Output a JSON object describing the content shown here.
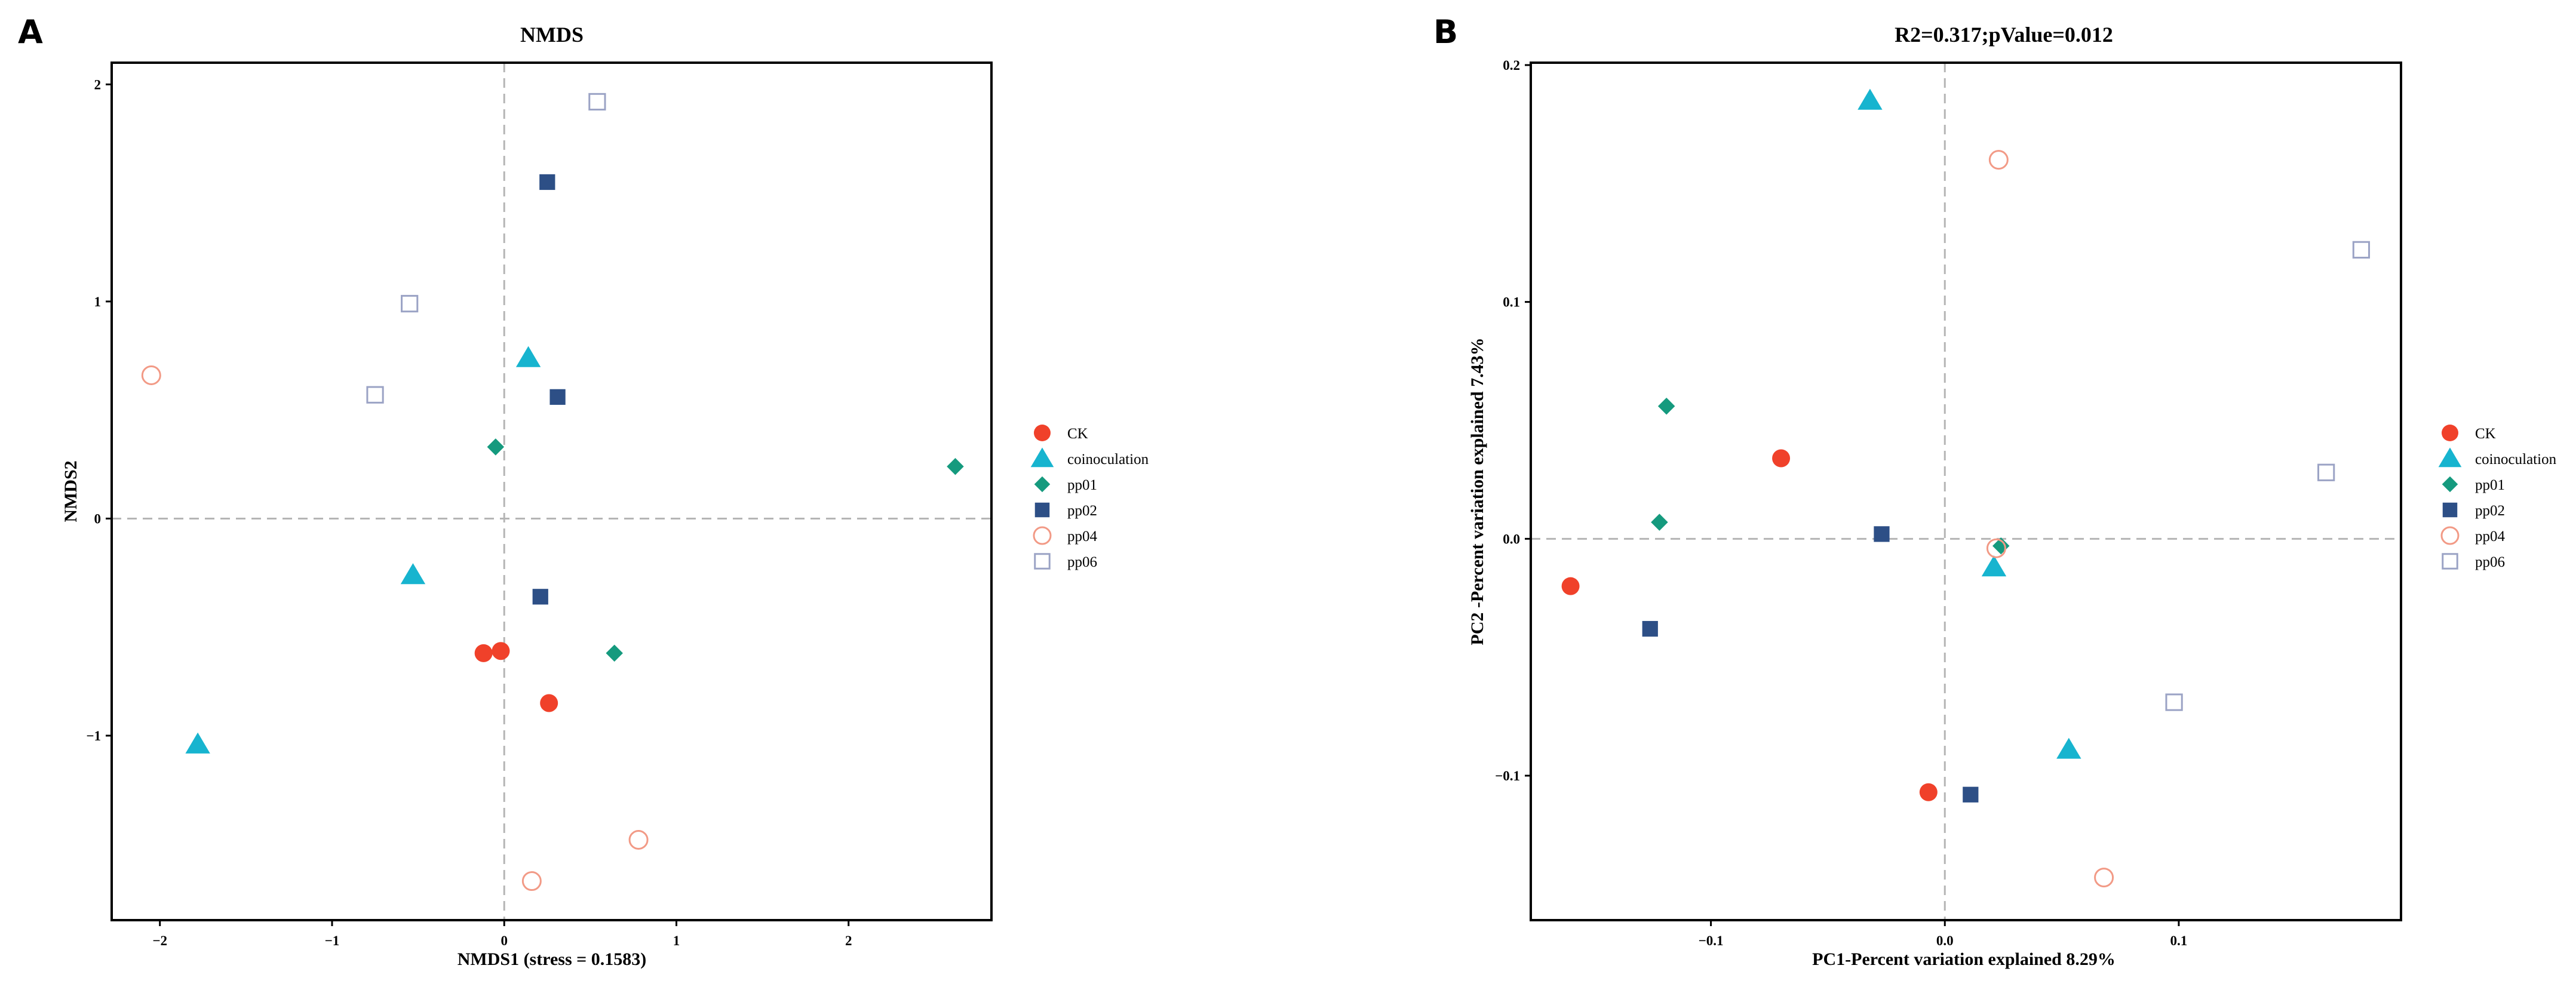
{
  "groups": [
    {
      "name": "CK",
      "shape": "circle",
      "filled": true,
      "color": "#F0412A"
    },
    {
      "name": "coinoculation",
      "shape": "triangle",
      "filled": true,
      "color": "#17B4CF"
    },
    {
      "name": "pp01",
      "shape": "diamond",
      "filled": true,
      "color": "#159A7E"
    },
    {
      "name": "pp02",
      "shape": "square",
      "filled": true,
      "color": "#2D4F86"
    },
    {
      "name": "pp04",
      "shape": "circle",
      "filled": false,
      "color": "#F29A86"
    },
    {
      "name": "pp06",
      "shape": "square",
      "filled": false,
      "color": "#9BA3C5"
    }
  ],
  "chart_data": [
    {
      "panel": "A",
      "type": "scatter",
      "title": "NMDS",
      "xlabel": "NMDS1 (stress = 0.1583)",
      "ylabel": "NMDS2",
      "xlim": [
        -2.28,
        2.83
      ],
      "ylim": [
        -1.85,
        2.1
      ],
      "xticks": [
        {
          "v": -2,
          "label": "−2"
        },
        {
          "v": -1,
          "label": "−1"
        },
        {
          "v": 0,
          "label": "0"
        },
        {
          "v": 1,
          "label": "1"
        },
        {
          "v": 2,
          "label": "2"
        }
      ],
      "yticks": [
        {
          "v": -1,
          "label": "−1"
        },
        {
          "v": 0,
          "label": "0"
        },
        {
          "v": 1,
          "label": "1"
        },
        {
          "v": 2,
          "label": "2"
        }
      ],
      "points": [
        {
          "group": "CK",
          "x": -0.12,
          "y": -0.62
        },
        {
          "group": "CK",
          "x": -0.02,
          "y": -0.61
        },
        {
          "group": "CK",
          "x": 0.26,
          "y": -0.85
        },
        {
          "group": "coinoculation",
          "x": -1.78,
          "y": -1.04
        },
        {
          "group": "coinoculation",
          "x": -0.53,
          "y": -0.26
        },
        {
          "group": "coinoculation",
          "x": 0.14,
          "y": 0.74
        },
        {
          "group": "pp01",
          "x": -0.05,
          "y": 0.33
        },
        {
          "group": "pp01",
          "x": 0.64,
          "y": -0.62
        },
        {
          "group": "pp01",
          "x": 2.62,
          "y": 0.24
        },
        {
          "group": "pp02",
          "x": 0.25,
          "y": 1.55
        },
        {
          "group": "pp02",
          "x": 0.31,
          "y": 0.56
        },
        {
          "group": "pp02",
          "x": 0.21,
          "y": -0.36
        },
        {
          "group": "pp04",
          "x": -2.05,
          "y": 0.66
        },
        {
          "group": "pp04",
          "x": 0.78,
          "y": -1.48
        },
        {
          "group": "pp04",
          "x": 0.16,
          "y": -1.67
        },
        {
          "group": "pp06",
          "x": 0.54,
          "y": 1.92
        },
        {
          "group": "pp06",
          "x": -0.55,
          "y": 0.99
        },
        {
          "group": "pp06",
          "x": -0.75,
          "y": 0.57
        }
      ]
    },
    {
      "panel": "B",
      "type": "scatter",
      "title": "R2=0.317;pValue=0.012",
      "xlabel": "PC1-Percent variation explained 8.29%",
      "ylabel": "PC2 -Percent variation explained 7.43%",
      "xlim": [
        -0.177,
        0.195
      ],
      "ylim": [
        -0.161,
        0.201
      ],
      "xticks": [
        {
          "v": -0.1,
          "label": "−0.1"
        },
        {
          "v": 0,
          "label": "0.0"
        },
        {
          "v": 0.1,
          "label": "0.1"
        }
      ],
      "yticks": [
        {
          "v": -0.1,
          "label": "−0.1"
        },
        {
          "v": 0,
          "label": "0.0"
        },
        {
          "v": 0.1,
          "label": "0.1"
        },
        {
          "v": 0.2,
          "label": "0.2"
        }
      ],
      "points": [
        {
          "group": "CK",
          "x": -0.07,
          "y": 0.034
        },
        {
          "group": "CK",
          "x": -0.16,
          "y": -0.02
        },
        {
          "group": "CK",
          "x": -0.007,
          "y": -0.107
        },
        {
          "group": "coinoculation",
          "x": -0.032,
          "y": 0.185
        },
        {
          "group": "coinoculation",
          "x": 0.021,
          "y": -0.012
        },
        {
          "group": "coinoculation",
          "x": 0.053,
          "y": -0.089
        },
        {
          "group": "pp01",
          "x": -0.119,
          "y": 0.056
        },
        {
          "group": "pp01",
          "x": -0.122,
          "y": 0.007
        },
        {
          "group": "pp01",
          "x": 0.024,
          "y": -0.003
        },
        {
          "group": "pp02",
          "x": -0.027,
          "y": 0.002
        },
        {
          "group": "pp02",
          "x": -0.126,
          "y": -0.038
        },
        {
          "group": "pp02",
          "x": 0.011,
          "y": -0.108
        },
        {
          "group": "pp04",
          "x": 0.023,
          "y": 0.16
        },
        {
          "group": "pp04",
          "x": 0.022,
          "y": -0.004
        },
        {
          "group": "pp04",
          "x": 0.068,
          "y": -0.143
        },
        {
          "group": "pp06",
          "x": 0.178,
          "y": 0.122
        },
        {
          "group": "pp06",
          "x": 0.163,
          "y": 0.028
        },
        {
          "group": "pp06",
          "x": 0.098,
          "y": -0.069
        }
      ]
    }
  ]
}
